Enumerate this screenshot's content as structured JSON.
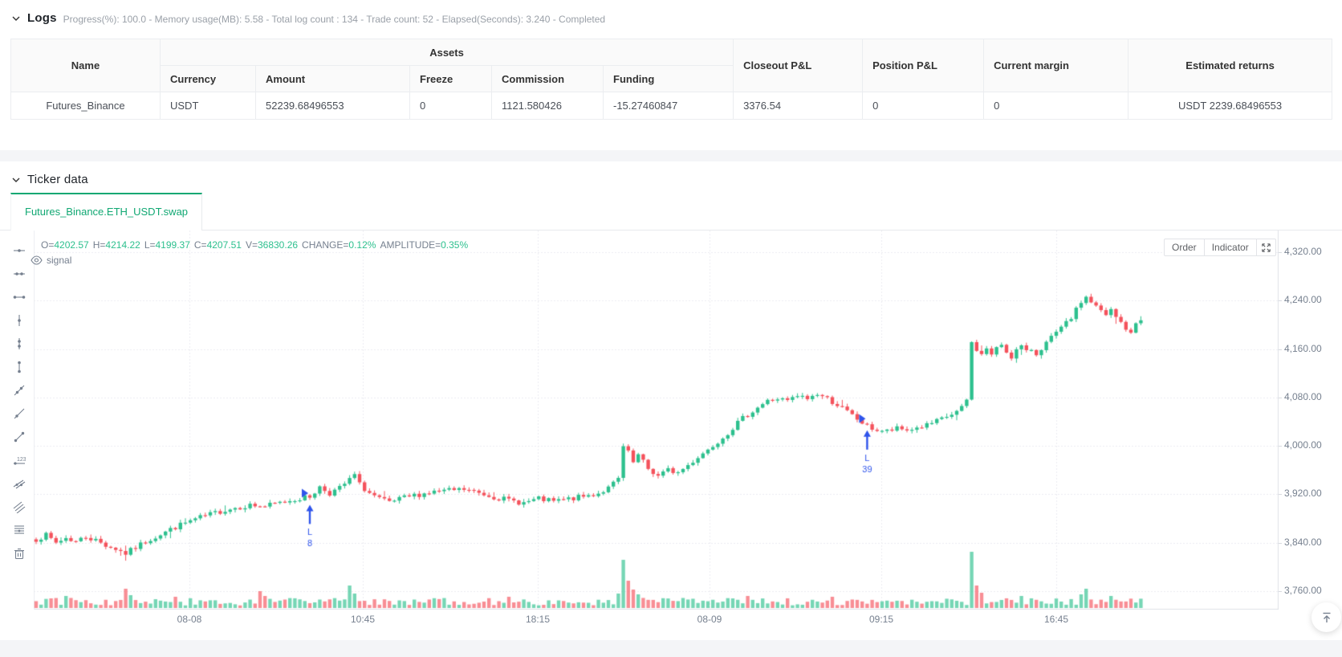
{
  "logs": {
    "title": "Logs",
    "meta": "Progress(%): 100.0  - Memory usage(MB): 5.58 - Total log count : 134 - Trade count:  52 - Elapsed(Seconds): 3.240 - Completed"
  },
  "assets_table": {
    "headers": {
      "name": "Name",
      "assets": "Assets",
      "closeout_pnl": "Closeout P&L",
      "position_pnl": "Position P&L",
      "current_margin": "Current margin",
      "estimated_returns": "Estimated returns"
    },
    "sub_headers": [
      "Currency",
      "Amount",
      "Freeze",
      "Commission",
      "Funding"
    ],
    "row": {
      "name": "Futures_Binance",
      "currency": "USDT",
      "amount": "52239.68496553",
      "freeze": "0",
      "commission": "1121.580426",
      "funding": "-15.27460847",
      "closeout_pnl": "3376.54",
      "position_pnl": "0",
      "current_margin": "0",
      "estimated_returns": "USDT 2239.68496553"
    }
  },
  "ticker": {
    "title": "Ticker data",
    "tab": "Futures_Binance.ETH_USDT.swap"
  },
  "chart": {
    "legend": [
      {
        "label": "O=",
        "value": "4202.57"
      },
      {
        "label": "H=",
        "value": "4214.22"
      },
      {
        "label": "L=",
        "value": "4199.37"
      },
      {
        "label": "C=",
        "value": "4207.51"
      },
      {
        "label": "V=",
        "value": "36830.26"
      },
      {
        "label": "CHANGE=",
        "value": "0.12%"
      },
      {
        "label": "AMPLITUDE=",
        "value": "0.35%"
      }
    ],
    "overlay_label": "signal",
    "buttons": {
      "order": "Order",
      "indicator": "Indicator"
    },
    "tools": [
      "horizontal-straight-line",
      "horizontal-ray-line",
      "horizontal-segment",
      "vertical-straight-line",
      "vertical-ray-line",
      "vertical-segment",
      "straight-line",
      "ray-line",
      "segment",
      "price-line",
      "parallel-straight-line",
      "price-channel-line",
      "fibonacci-line",
      "remove"
    ]
  },
  "chart_data": {
    "type": "candlestick",
    "title": "Futures_Binance.ETH_USDT.swap",
    "y_axis_labels": [
      "4,320.00",
      "4,240.00",
      "4,160.00",
      "4,080.00",
      "4,000.00",
      "3,920.00",
      "3,840.00",
      "3,760.00"
    ],
    "x_axis_labels": [
      "08-08",
      "10:45",
      "18:15",
      "08-09",
      "09:15",
      "16:45"
    ],
    "ylim": [
      3729,
      4356
    ],
    "grid": true,
    "last_candle": {
      "open": 4202.57,
      "high": 4214.22,
      "low": 4199.37,
      "close": 4207.51,
      "volume": 36830.26,
      "change_pct": "0.12%",
      "amplitude_pct": "0.35%"
    },
    "close_anchors": [
      [
        0,
        3846
      ],
      [
        2,
        3852
      ],
      [
        4,
        3840
      ],
      [
        6,
        3848
      ],
      [
        8,
        3842
      ],
      [
        10,
        3850
      ],
      [
        12,
        3844
      ],
      [
        14,
        3836
      ],
      [
        16,
        3830
      ],
      [
        18,
        3822
      ],
      [
        20,
        3832
      ],
      [
        22,
        3842
      ],
      [
        24,
        3850
      ],
      [
        26,
        3858
      ],
      [
        28,
        3866
      ],
      [
        31,
        3876
      ],
      [
        34,
        3884
      ],
      [
        37,
        3892
      ],
      [
        40,
        3898
      ],
      [
        43,
        3902
      ],
      [
        46,
        3900
      ],
      [
        49,
        3906
      ],
      [
        52,
        3912
      ],
      [
        55,
        3916
      ],
      [
        57,
        3932
      ],
      [
        59,
        3922
      ],
      [
        61,
        3930
      ],
      [
        63,
        3944
      ],
      [
        64,
        3952
      ],
      [
        65,
        3936
      ],
      [
        67,
        3922
      ],
      [
        69,
        3912
      ],
      [
        71,
        3906
      ],
      [
        74,
        3914
      ],
      [
        77,
        3920
      ],
      [
        80,
        3924
      ],
      [
        83,
        3926
      ],
      [
        86,
        3928
      ],
      [
        89,
        3922
      ],
      [
        92,
        3916
      ],
      [
        95,
        3910
      ],
      [
        98,
        3906
      ],
      [
        101,
        3912
      ],
      [
        104,
        3908
      ],
      [
        107,
        3912
      ],
      [
        110,
        3916
      ],
      [
        113,
        3922
      ],
      [
        115,
        3930
      ],
      [
        117,
        3945
      ],
      [
        118,
        3998
      ],
      [
        119,
        3988
      ],
      [
        120,
        3972
      ],
      [
        121,
        3984
      ],
      [
        123,
        3962
      ],
      [
        125,
        3950
      ],
      [
        127,
        3960
      ],
      [
        129,
        3956
      ],
      [
        131,
        3968
      ],
      [
        133,
        3982
      ],
      [
        135,
        3994
      ],
      [
        137,
        4008
      ],
      [
        139,
        4022
      ],
      [
        141,
        4038
      ],
      [
        143,
        4052
      ],
      [
        145,
        4064
      ],
      [
        147,
        4074
      ],
      [
        149,
        4078
      ],
      [
        151,
        4074
      ],
      [
        153,
        4082
      ],
      [
        155,
        4078
      ],
      [
        157,
        4086
      ],
      [
        159,
        4078
      ],
      [
        161,
        4068
      ],
      [
        163,
        4056
      ],
      [
        165,
        4044
      ],
      [
        167,
        4032
      ],
      [
        169,
        4026
      ],
      [
        171,
        4024
      ],
      [
        173,
        4028
      ],
      [
        175,
        4026
      ],
      [
        177,
        4030
      ],
      [
        179,
        4034
      ],
      [
        181,
        4040
      ],
      [
        183,
        4048
      ],
      [
        185,
        4056
      ],
      [
        186,
        4062
      ],
      [
        187,
        4076
      ],
      [
        188,
        4170
      ],
      [
        189,
        4160
      ],
      [
        190,
        4150
      ],
      [
        191,
        4162
      ],
      [
        192,
        4150
      ],
      [
        193,
        4160
      ],
      [
        194,
        4168
      ],
      [
        195,
        4156
      ],
      [
        196,
        4148
      ],
      [
        197,
        4158
      ],
      [
        198,
        4164
      ],
      [
        199,
        4154
      ],
      [
        200,
        4160
      ],
      [
        201,
        4152
      ],
      [
        202,
        4162
      ],
      [
        203,
        4170
      ],
      [
        204,
        4178
      ],
      [
        205,
        4186
      ],
      [
        206,
        4194
      ],
      [
        207,
        4202
      ],
      [
        208,
        4212
      ],
      [
        209,
        4224
      ],
      [
        210,
        4238
      ],
      [
        211,
        4246
      ],
      [
        212,
        4238
      ],
      [
        213,
        4230
      ],
      [
        214,
        4222
      ],
      [
        215,
        4215
      ],
      [
        216,
        4224
      ],
      [
        217,
        4212
      ],
      [
        218,
        4204
      ],
      [
        219,
        4194
      ],
      [
        220,
        4184
      ],
      [
        221,
        4202.57
      ],
      [
        222,
        4207.51
      ]
    ],
    "candle_count": 223,
    "volume_spikes": {
      "6": 1500,
      "18": 2400,
      "19": 1600,
      "28": 1400,
      "45": 2100,
      "46": 1500,
      "63": 2800,
      "64": 1800,
      "95": 1400,
      "117": 1800,
      "118": 6000,
      "119": 3400,
      "120": 2300,
      "121": 1700,
      "143": 1500,
      "160": 1400,
      "188": 7000,
      "189": 2800,
      "190": 1900,
      "198": 1500,
      "210": 1700,
      "211": 2400,
      "216": 1500
    },
    "markers": [
      {
        "index": 55,
        "type": "buy",
        "label": "L",
        "count": "8"
      },
      {
        "index": 167,
        "type": "buy",
        "label": "L",
        "count": "39"
      }
    ],
    "colors": {
      "up": "#2DC08E",
      "down": "#F4525C",
      "volume_up": "rgba(45,192,142,0.65)",
      "volume_down": "rgba(244,82,92,0.65)",
      "marker": "#2F54EB",
      "accent": "#11a873",
      "grid": "#ececf0",
      "axis_text": "#76808F"
    }
  }
}
